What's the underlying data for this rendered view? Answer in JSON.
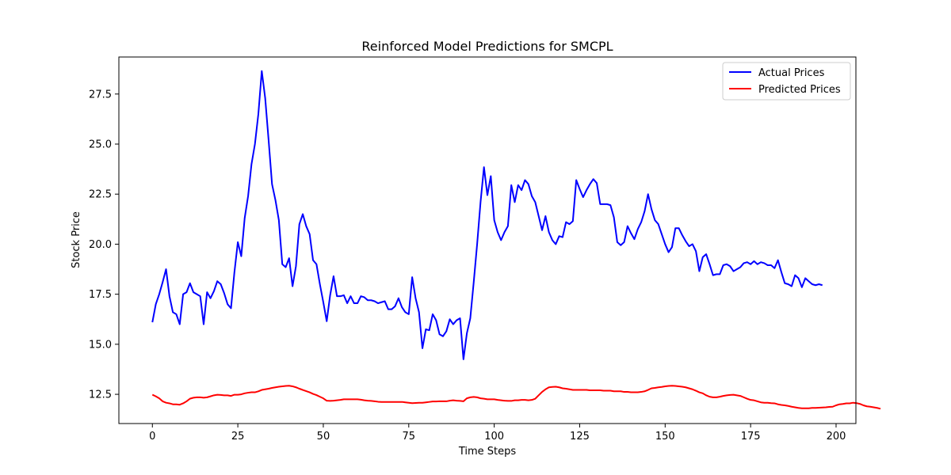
{
  "chart_data": {
    "type": "line",
    "title": "Reinforced Model Predictions for SMCPL",
    "xlabel": "Time Steps",
    "ylabel": "Stock Price",
    "xlim": [
      -9.8,
      205.8
    ],
    "ylim": [
      11.04,
      29.35
    ],
    "xticks": [
      0,
      25,
      50,
      75,
      100,
      125,
      150,
      175,
      200
    ],
    "xtick_labels": [
      "0",
      "25",
      "50",
      "75",
      "100",
      "125",
      "150",
      "175",
      "200"
    ],
    "yticks": [
      12.5,
      15.0,
      17.5,
      20.0,
      22.5,
      25.0,
      27.5
    ],
    "ytick_labels": [
      "12.5",
      "15.0",
      "17.5",
      "20.0",
      "22.5",
      "25.0",
      "27.5"
    ],
    "grid": false,
    "legend_position": "top-right",
    "series": [
      {
        "name": "Actual Prices",
        "color": "#0000ff",
        "values": [
          16.1,
          17.0,
          17.5,
          18.1,
          18.75,
          17.4,
          16.6,
          16.5,
          16.0,
          17.5,
          17.6,
          18.05,
          17.6,
          17.5,
          17.4,
          16.0,
          17.6,
          17.3,
          17.65,
          18.15,
          18.0,
          17.55,
          17.0,
          16.8,
          18.6,
          20.1,
          19.4,
          21.3,
          22.4,
          24.0,
          25.0,
          26.5,
          28.65,
          27.3,
          25.2,
          23.0,
          22.2,
          21.2,
          19.0,
          18.85,
          19.3,
          17.9,
          18.9,
          21.0,
          21.5,
          20.9,
          20.5,
          19.2,
          19.0,
          18.0,
          17.1,
          16.15,
          17.45,
          18.4,
          17.4,
          17.4,
          17.45,
          17.05,
          17.4,
          17.05,
          17.05,
          17.4,
          17.35,
          17.2,
          17.2,
          17.15,
          17.05,
          17.1,
          17.15,
          16.75,
          16.75,
          16.9,
          17.3,
          16.85,
          16.6,
          16.5,
          18.35,
          17.3,
          16.6,
          14.8,
          15.75,
          15.7,
          16.5,
          16.2,
          15.5,
          15.4,
          15.65,
          16.25,
          16.0,
          16.2,
          16.3,
          14.25,
          15.55,
          16.3,
          18.1,
          20.0,
          22.1,
          23.85,
          22.45,
          23.4,
          21.2,
          20.6,
          20.2,
          20.6,
          20.9,
          22.95,
          22.1,
          22.95,
          22.7,
          23.2,
          23.0,
          22.4,
          22.1,
          21.4,
          20.7,
          21.4,
          20.6,
          20.2,
          20.0,
          20.4,
          20.35,
          21.1,
          21.0,
          21.15,
          23.2,
          22.75,
          22.35,
          22.7,
          23.0,
          23.25,
          23.05,
          22.0,
          22.0,
          22.0,
          21.95,
          21.35,
          20.1,
          19.95,
          20.1,
          20.9,
          20.55,
          20.25,
          20.75,
          21.1,
          21.65,
          22.5,
          21.75,
          21.2,
          21.0,
          20.5,
          20.0,
          19.6,
          19.85,
          20.8,
          20.8,
          20.45,
          20.15,
          19.9,
          20.0,
          19.65,
          18.65,
          19.35,
          19.5,
          19.0,
          18.45,
          18.5,
          18.5,
          18.95,
          19.0,
          18.9,
          18.65,
          18.75,
          18.85,
          19.05,
          19.1,
          19.0,
          19.15,
          19.0,
          19.1,
          19.05,
          18.95,
          18.95,
          18.8,
          19.2,
          18.6,
          18.05,
          18.0,
          17.9,
          18.45,
          18.3,
          17.85,
          18.3,
          18.15,
          18.0,
          17.95,
          18.0,
          17.95
        ]
      },
      {
        "name": "Predicted Prices",
        "color": "#ff0000",
        "values": [
          12.48,
          12.4,
          12.3,
          12.15,
          12.08,
          12.05,
          12.0,
          12.0,
          11.98,
          12.05,
          12.15,
          12.28,
          12.33,
          12.35,
          12.35,
          12.33,
          12.35,
          12.4,
          12.45,
          12.48,
          12.47,
          12.45,
          12.45,
          12.42,
          12.48,
          12.48,
          12.5,
          12.55,
          12.58,
          12.6,
          12.6,
          12.65,
          12.72,
          12.75,
          12.78,
          12.82,
          12.85,
          12.88,
          12.9,
          12.92,
          12.93,
          12.9,
          12.85,
          12.78,
          12.72,
          12.66,
          12.6,
          12.52,
          12.46,
          12.38,
          12.3,
          12.18,
          12.17,
          12.18,
          12.2,
          12.22,
          12.25,
          12.25,
          12.25,
          12.25,
          12.25,
          12.23,
          12.2,
          12.18,
          12.17,
          12.15,
          12.13,
          12.12,
          12.12,
          12.12,
          12.12,
          12.12,
          12.12,
          12.12,
          12.1,
          12.08,
          12.06,
          12.07,
          12.08,
          12.08,
          12.1,
          12.12,
          12.14,
          12.14,
          12.15,
          12.15,
          12.15,
          12.18,
          12.2,
          12.18,
          12.17,
          12.15,
          12.3,
          12.35,
          12.37,
          12.35,
          12.3,
          12.28,
          12.25,
          12.25,
          12.25,
          12.22,
          12.2,
          12.18,
          12.17,
          12.17,
          12.2,
          12.2,
          12.22,
          12.22,
          12.2,
          12.22,
          12.28,
          12.45,
          12.62,
          12.75,
          12.85,
          12.87,
          12.88,
          12.85,
          12.8,
          12.78,
          12.75,
          12.72,
          12.72,
          12.72,
          12.72,
          12.72,
          12.7,
          12.7,
          12.7,
          12.7,
          12.68,
          12.68,
          12.68,
          12.65,
          12.65,
          12.65,
          12.62,
          12.62,
          12.6,
          12.6,
          12.6,
          12.62,
          12.65,
          12.72,
          12.8,
          12.82,
          12.85,
          12.87,
          12.9,
          12.92,
          12.93,
          12.92,
          12.9,
          12.88,
          12.85,
          12.8,
          12.75,
          12.68,
          12.6,
          12.55,
          12.45,
          12.38,
          12.35,
          12.35,
          12.38,
          12.42,
          12.45,
          12.47,
          12.48,
          12.45,
          12.42,
          12.35,
          12.28,
          12.22,
          12.2,
          12.15,
          12.1,
          12.08,
          12.08,
          12.06,
          12.05,
          12.0,
          11.97,
          11.95,
          11.92,
          11.88,
          11.85,
          11.82,
          11.8,
          11.8,
          11.8,
          11.82,
          11.82,
          11.83,
          11.84,
          11.85,
          11.87,
          11.88,
          11.95,
          12.0,
          12.02,
          12.05,
          12.05,
          12.08,
          12.06,
          12.02,
          11.95,
          11.9,
          11.88,
          11.85,
          11.82,
          11.78
        ]
      }
    ]
  }
}
